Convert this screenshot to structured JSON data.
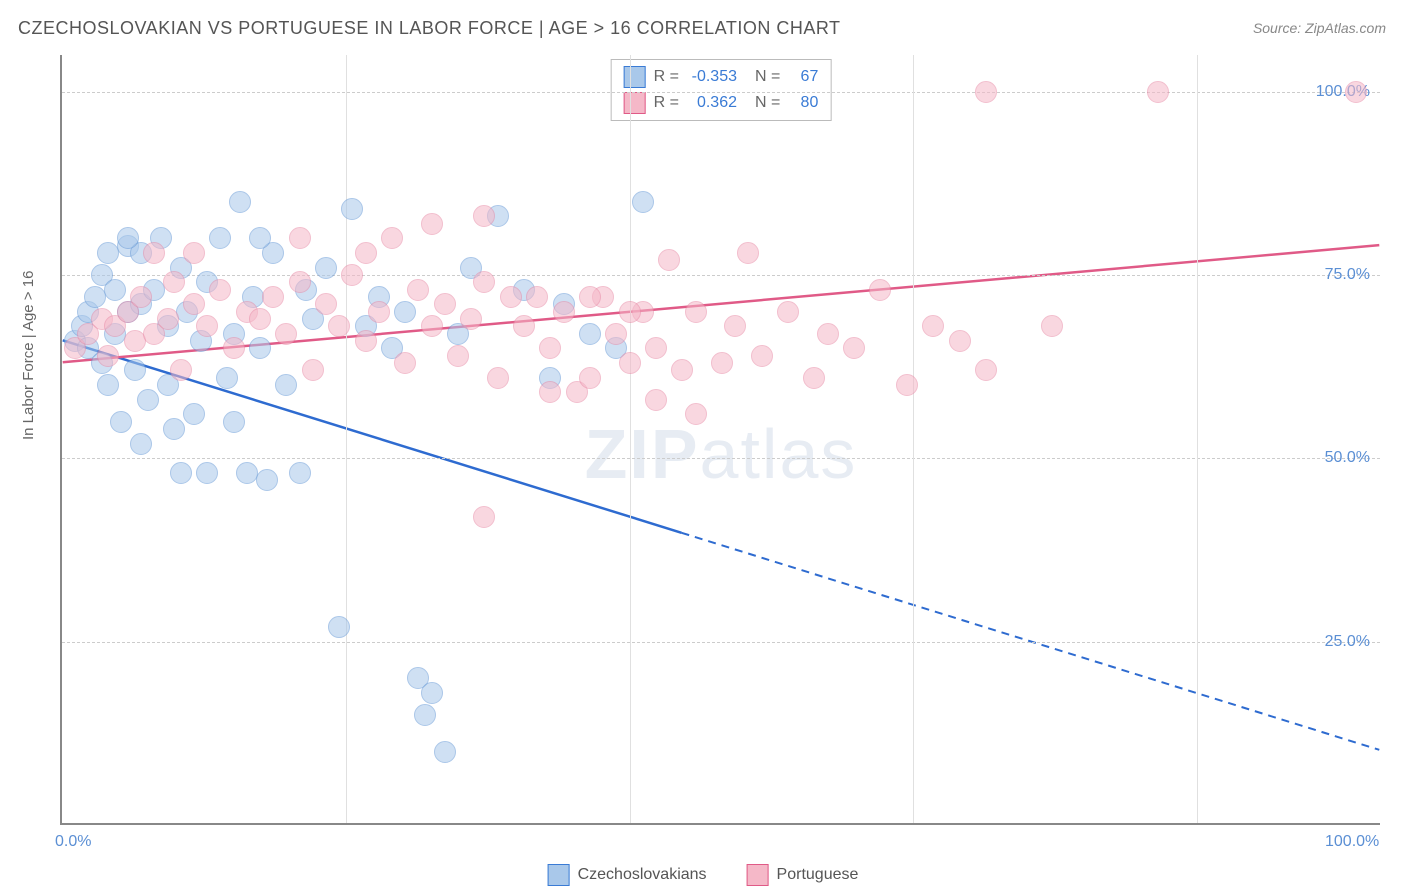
{
  "title": "CZECHOSLOVAKIAN VS PORTUGUESE IN LABOR FORCE | AGE > 16 CORRELATION CHART",
  "source": "Source: ZipAtlas.com",
  "yaxis_title": "In Labor Force | Age > 16",
  "watermark_a": "ZIP",
  "watermark_b": "atlas",
  "chart": {
    "type": "scatter",
    "xlim": [
      0,
      100
    ],
    "ylim": [
      0,
      105
    ],
    "xticks": [
      {
        "pos": 0,
        "label": "0.0%"
      },
      {
        "pos": 100,
        "label": "100.0%"
      }
    ],
    "yticks": [
      {
        "pos": 25,
        "label": "25.0%"
      },
      {
        "pos": 50,
        "label": "50.0%"
      },
      {
        "pos": 75,
        "label": "75.0%"
      },
      {
        "pos": 100,
        "label": "100.0%"
      }
    ],
    "vgrid_positions": [
      21.5,
      43,
      64.5,
      86
    ],
    "background_color": "#ffffff",
    "grid_color": "#cccccc",
    "point_radius": 11,
    "point_opacity": 0.55,
    "stats_legend": {
      "rows": [
        {
          "swatch_fill": "#a9c8ea",
          "swatch_border": "#3a7bd5",
          "r_label": "R =",
          "r_val": "-0.353",
          "n_label": "N =",
          "n_val": "67"
        },
        {
          "swatch_fill": "#f5b8c8",
          "swatch_border": "#e05a87",
          "r_label": "R =",
          "r_val": "0.362",
          "n_label": "N =",
          "n_val": "80"
        }
      ]
    },
    "bottom_legend": [
      {
        "swatch_fill": "#a9c8ea",
        "swatch_border": "#3a7bd5",
        "label": "Czechoslovakians"
      },
      {
        "swatch_fill": "#f5b8c8",
        "swatch_border": "#e05a87",
        "label": "Portuguese"
      }
    ],
    "series": [
      {
        "name": "czechoslovakians",
        "fill": "#a9c8ea",
        "stroke": "#6699d6",
        "trend": {
          "x1": 0,
          "y1": 66,
          "x2": 100,
          "y2": 10,
          "solid_until_x": 47,
          "color": "#2e6bd0",
          "width": 2.5
        },
        "points": [
          [
            1,
            66
          ],
          [
            1.5,
            68
          ],
          [
            2,
            70
          ],
          [
            2,
            65
          ],
          [
            2.5,
            72
          ],
          [
            3,
            75
          ],
          [
            3,
            63
          ],
          [
            3.5,
            78
          ],
          [
            3.5,
            60
          ],
          [
            4,
            73
          ],
          [
            4,
            67
          ],
          [
            4.5,
            55
          ],
          [
            5,
            70
          ],
          [
            5,
            79
          ],
          [
            5.5,
            62
          ],
          [
            6,
            78
          ],
          [
            6,
            71
          ],
          [
            6.5,
            58
          ],
          [
            7,
            73
          ],
          [
            7.5,
            80
          ],
          [
            8,
            68
          ],
          [
            8,
            60
          ],
          [
            8.5,
            54
          ],
          [
            9,
            76
          ],
          [
            9.5,
            70
          ],
          [
            10,
            56
          ],
          [
            10.5,
            66
          ],
          [
            11,
            74
          ],
          [
            12,
            80
          ],
          [
            12.5,
            61
          ],
          [
            13,
            67
          ],
          [
            13.5,
            85
          ],
          [
            14,
            48
          ],
          [
            14.5,
            72
          ],
          [
            15,
            65
          ],
          [
            15.5,
            47
          ],
          [
            16,
            78
          ],
          [
            17,
            60
          ],
          [
            18,
            48
          ],
          [
            18.5,
            73
          ],
          [
            19,
            69
          ],
          [
            20,
            76
          ],
          [
            21,
            27
          ],
          [
            22,
            84
          ],
          [
            23,
            68
          ],
          [
            24,
            72
          ],
          [
            25,
            65
          ],
          [
            26,
            70
          ],
          [
            27,
            20
          ],
          [
            27.5,
            15
          ],
          [
            28,
            18
          ],
          [
            29,
            10
          ],
          [
            30,
            67
          ],
          [
            31,
            76
          ],
          [
            33,
            83
          ],
          [
            35,
            73
          ],
          [
            37,
            61
          ],
          [
            38,
            71
          ],
          [
            40,
            67
          ],
          [
            42,
            65
          ],
          [
            44,
            85
          ],
          [
            9,
            48
          ],
          [
            6,
            52
          ],
          [
            5,
            80
          ],
          [
            11,
            48
          ],
          [
            13,
            55
          ],
          [
            15,
            80
          ]
        ]
      },
      {
        "name": "portuguese",
        "fill": "#f5b8c8",
        "stroke": "#e88aa6",
        "trend": {
          "x1": 0,
          "y1": 63,
          "x2": 100,
          "y2": 79,
          "solid_until_x": 100,
          "color": "#e05a87",
          "width": 2.5
        },
        "points": [
          [
            1,
            65
          ],
          [
            2,
            67
          ],
          [
            3,
            69
          ],
          [
            3.5,
            64
          ],
          [
            4,
            68
          ],
          [
            5,
            70
          ],
          [
            5.5,
            66
          ],
          [
            6,
            72
          ],
          [
            7,
            67
          ],
          [
            8,
            69
          ],
          [
            8.5,
            74
          ],
          [
            9,
            62
          ],
          [
            10,
            71
          ],
          [
            11,
            68
          ],
          [
            12,
            73
          ],
          [
            13,
            65
          ],
          [
            14,
            70
          ],
          [
            15,
            69
          ],
          [
            16,
            72
          ],
          [
            17,
            67
          ],
          [
            18,
            74
          ],
          [
            19,
            62
          ],
          [
            20,
            71
          ],
          [
            21,
            68
          ],
          [
            22,
            75
          ],
          [
            23,
            66
          ],
          [
            24,
            70
          ],
          [
            25,
            80
          ],
          [
            26,
            63
          ],
          [
            27,
            73
          ],
          [
            28,
            68
          ],
          [
            29,
            71
          ],
          [
            30,
            64
          ],
          [
            31,
            69
          ],
          [
            32,
            74
          ],
          [
            33,
            61
          ],
          [
            34,
            72
          ],
          [
            35,
            68
          ],
          [
            36,
            72
          ],
          [
            37,
            65
          ],
          [
            38,
            70
          ],
          [
            39,
            59
          ],
          [
            40,
            61
          ],
          [
            41,
            72
          ],
          [
            42,
            67
          ],
          [
            43,
            63
          ],
          [
            44,
            70
          ],
          [
            45,
            65
          ],
          [
            46,
            77
          ],
          [
            47,
            62
          ],
          [
            28,
            82
          ],
          [
            23,
            78
          ],
          [
            32,
            42
          ],
          [
            37,
            59
          ],
          [
            40,
            72
          ],
          [
            43,
            70
          ],
          [
            45,
            58
          ],
          [
            48,
            70
          ],
          [
            50,
            63
          ],
          [
            51,
            68
          ],
          [
            52,
            78
          ],
          [
            53,
            64
          ],
          [
            55,
            70
          ],
          [
            57,
            61
          ],
          [
            58,
            67
          ],
          [
            60,
            65
          ],
          [
            62,
            73
          ],
          [
            64,
            60
          ],
          [
            66,
            68
          ],
          [
            68,
            66
          ],
          [
            70,
            62
          ],
          [
            75,
            68
          ],
          [
            70,
            100
          ],
          [
            83,
            100
          ],
          [
            98,
            100
          ],
          [
            32,
            83
          ],
          [
            18,
            80
          ],
          [
            10,
            78
          ],
          [
            7,
            78
          ],
          [
            48,
            56
          ]
        ]
      }
    ]
  }
}
